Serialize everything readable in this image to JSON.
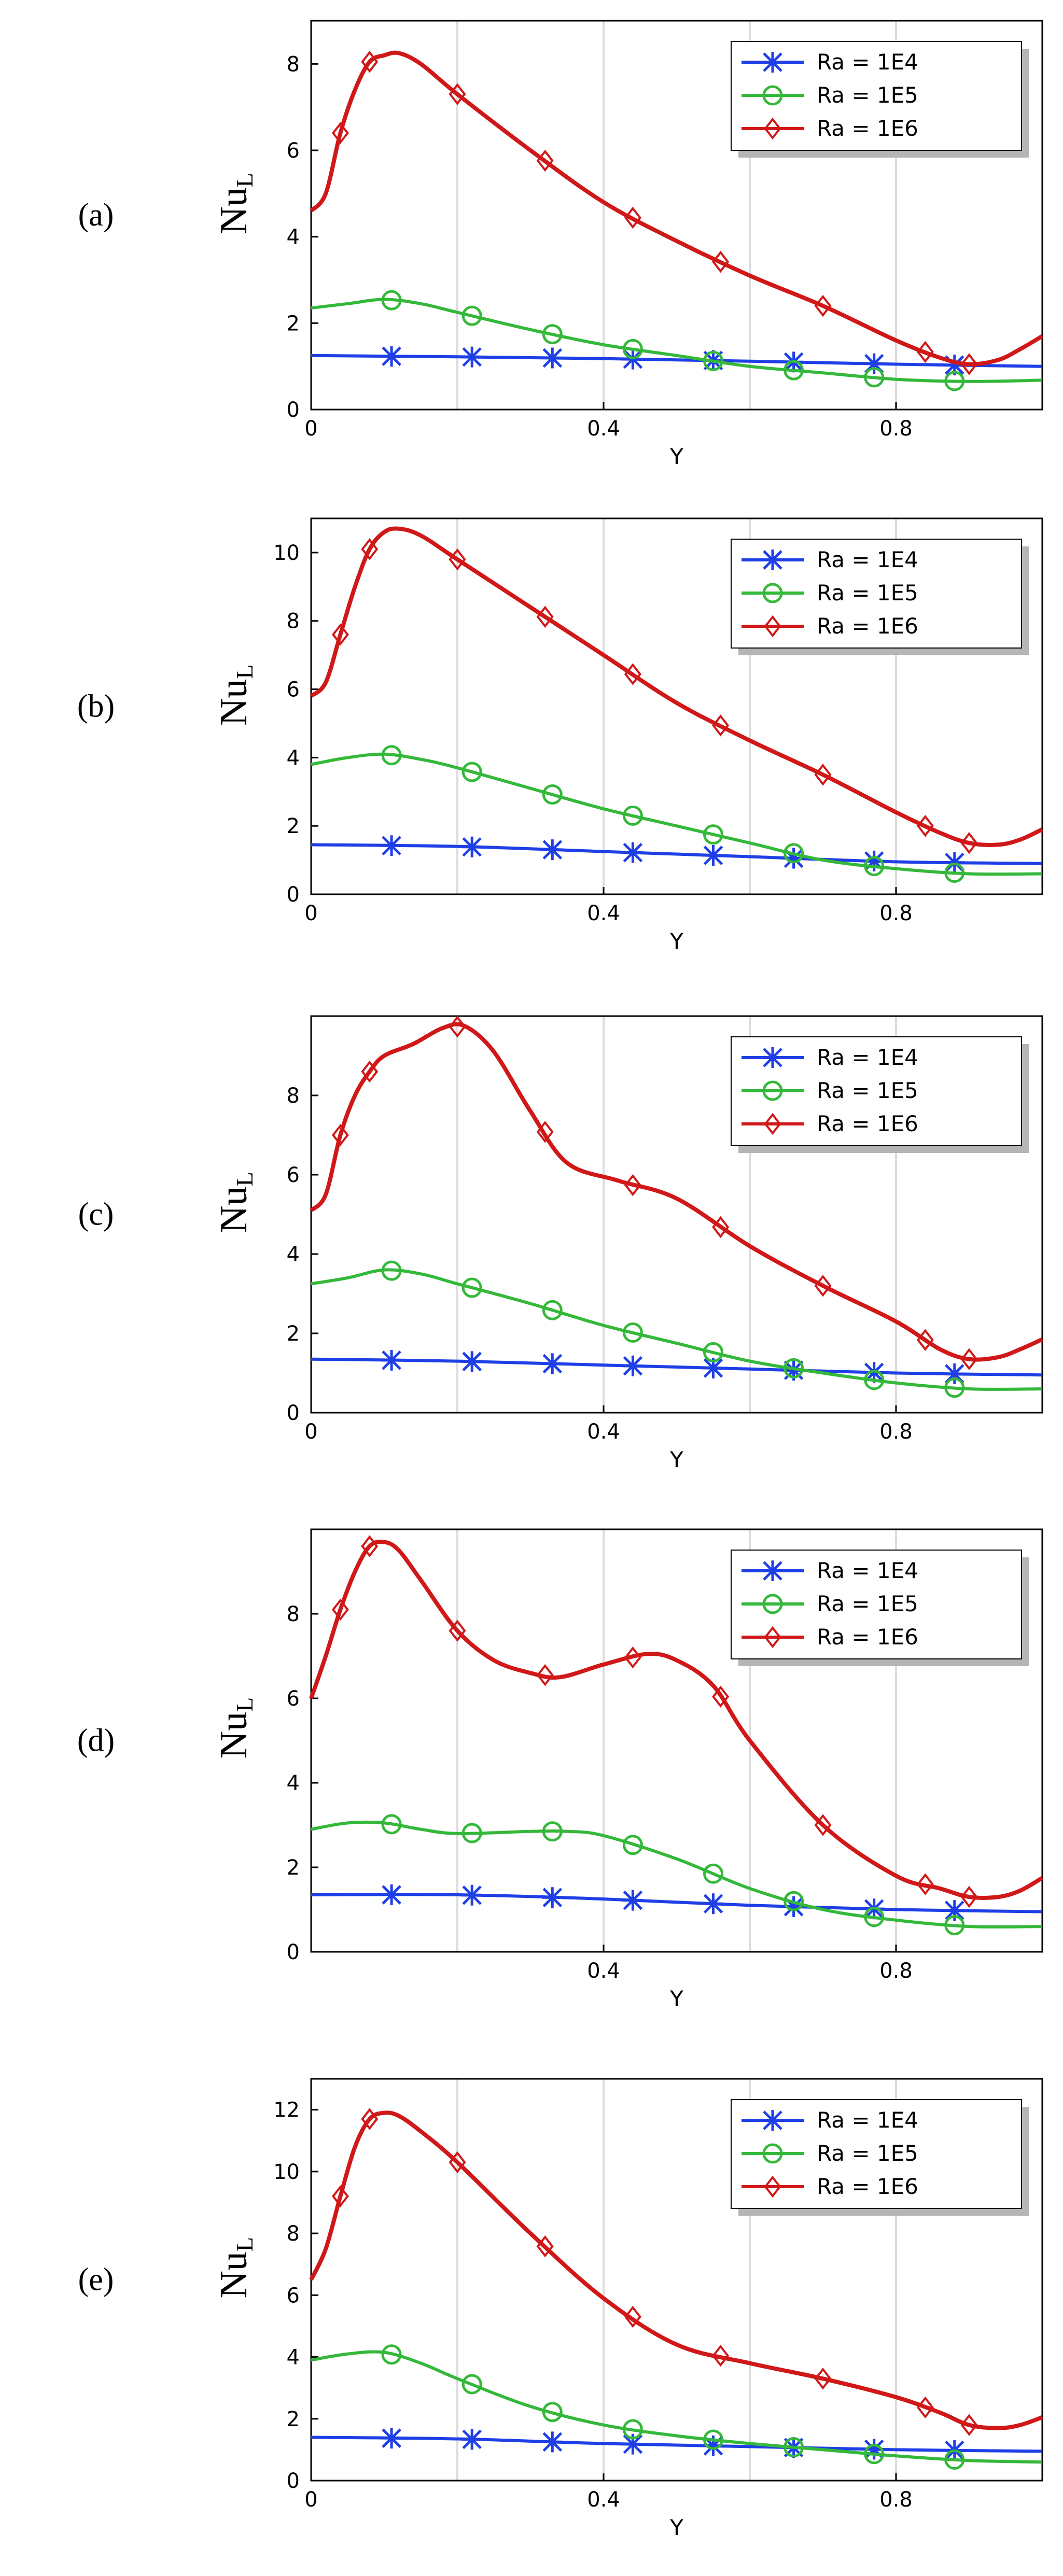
{
  "colors": {
    "Ra = 1E4": "#1f3fe6",
    "Ra = 1E5": "#34b83a",
    "Ra = 1E6": "#d01818"
  },
  "chart_data": [
    {
      "panel": "(a)",
      "type": "line",
      "xlabel": "Y",
      "ylabel": "Nu",
      "ylabel_sub": "L",
      "xlim": [
        0,
        1
      ],
      "ylim": [
        0,
        9
      ],
      "xticks": [
        0,
        0.4,
        0.8
      ],
      "yticks": [
        0,
        2,
        4,
        6,
        8
      ],
      "grid": true,
      "legend": "top-right",
      "series": [
        {
          "name": "Ra = 1E4",
          "marker": "x",
          "x": [
            0,
            0.2,
            0.4,
            0.6,
            0.8,
            1.0
          ],
          "y": [
            1.25,
            1.22,
            1.18,
            1.12,
            1.05,
            1.0
          ]
        },
        {
          "name": "Ra = 1E5",
          "marker": "circle",
          "x": [
            0,
            0.05,
            0.1,
            0.15,
            0.2,
            0.3,
            0.4,
            0.5,
            0.6,
            0.7,
            0.8,
            0.9,
            1.0
          ],
          "y": [
            2.35,
            2.45,
            2.55,
            2.45,
            2.25,
            1.85,
            1.5,
            1.25,
            1.0,
            0.85,
            0.7,
            0.65,
            0.68
          ]
        },
        {
          "name": "Ra = 1E6",
          "marker": "diamond",
          "x": [
            0,
            0.02,
            0.04,
            0.06,
            0.08,
            0.1,
            0.12,
            0.15,
            0.2,
            0.3,
            0.4,
            0.5,
            0.6,
            0.7,
            0.8,
            0.86,
            0.9,
            0.94,
            0.97,
            1.0
          ],
          "y": [
            4.6,
            5.0,
            6.4,
            7.4,
            8.05,
            8.2,
            8.25,
            8.0,
            7.3,
            6.0,
            4.8,
            3.9,
            3.1,
            2.4,
            1.6,
            1.2,
            1.05,
            1.15,
            1.4,
            1.7
          ]
        }
      ]
    },
    {
      "panel": "(b)",
      "type": "line",
      "xlabel": "Y",
      "ylabel": "Nu",
      "ylabel_sub": "L",
      "xlim": [
        0,
        1
      ],
      "ylim": [
        0,
        11
      ],
      "xticks": [
        0,
        0.4,
        0.8
      ],
      "yticks": [
        0,
        2,
        4,
        6,
        8,
        10
      ],
      "grid": true,
      "legend": "top-right",
      "series": [
        {
          "name": "Ra = 1E4",
          "marker": "x",
          "x": [
            0,
            0.2,
            0.4,
            0.6,
            0.8,
            1.0
          ],
          "y": [
            1.45,
            1.4,
            1.25,
            1.1,
            0.95,
            0.9
          ]
        },
        {
          "name": "Ra = 1E5",
          "marker": "circle",
          "x": [
            0,
            0.05,
            0.1,
            0.15,
            0.2,
            0.3,
            0.4,
            0.5,
            0.6,
            0.7,
            0.8,
            0.9,
            1.0
          ],
          "y": [
            3.8,
            4.0,
            4.1,
            3.95,
            3.7,
            3.1,
            2.5,
            2.0,
            1.5,
            1.0,
            0.75,
            0.6,
            0.6
          ]
        },
        {
          "name": "Ra = 1E6",
          "marker": "diamond",
          "x": [
            0,
            0.02,
            0.04,
            0.06,
            0.08,
            0.1,
            0.12,
            0.15,
            0.2,
            0.3,
            0.4,
            0.5,
            0.6,
            0.7,
            0.8,
            0.86,
            0.9,
            0.94,
            0.97,
            1.0
          ],
          "y": [
            5.8,
            6.2,
            7.6,
            9.0,
            10.1,
            10.6,
            10.7,
            10.5,
            9.8,
            8.4,
            7.0,
            5.6,
            4.5,
            3.5,
            2.4,
            1.8,
            1.5,
            1.45,
            1.6,
            1.9
          ]
        }
      ]
    },
    {
      "panel": "(c)",
      "type": "line",
      "xlabel": "Y",
      "ylabel": "Nu",
      "ylabel_sub": "L",
      "xlim": [
        0,
        1
      ],
      "ylim": [
        0,
        10
      ],
      "xticks": [
        0,
        0.4,
        0.8
      ],
      "yticks": [
        0,
        2,
        4,
        6,
        8
      ],
      "grid": true,
      "legend": "top-right",
      "series": [
        {
          "name": "Ra = 1E4",
          "marker": "x",
          "x": [
            0,
            0.2,
            0.4,
            0.6,
            0.8,
            1.0
          ],
          "y": [
            1.35,
            1.3,
            1.2,
            1.1,
            1.0,
            0.95
          ]
        },
        {
          "name": "Ra = 1E5",
          "marker": "circle",
          "x": [
            0,
            0.05,
            0.1,
            0.15,
            0.2,
            0.3,
            0.4,
            0.5,
            0.6,
            0.7,
            0.8,
            0.9,
            1.0
          ],
          "y": [
            3.25,
            3.4,
            3.6,
            3.5,
            3.25,
            2.75,
            2.2,
            1.75,
            1.3,
            1.0,
            0.75,
            0.6,
            0.6
          ]
        },
        {
          "name": "Ra = 1E6",
          "marker": "diamond",
          "x": [
            0,
            0.02,
            0.04,
            0.06,
            0.08,
            0.1,
            0.14,
            0.18,
            0.21,
            0.25,
            0.3,
            0.35,
            0.42,
            0.5,
            0.6,
            0.7,
            0.8,
            0.86,
            0.9,
            0.94,
            0.97,
            1.0
          ],
          "y": [
            5.1,
            5.5,
            7.0,
            8.0,
            8.6,
            9.0,
            9.3,
            9.7,
            9.75,
            9.1,
            7.6,
            6.3,
            5.85,
            5.4,
            4.2,
            3.2,
            2.3,
            1.6,
            1.35,
            1.4,
            1.6,
            1.85
          ]
        }
      ]
    },
    {
      "panel": "(d)",
      "type": "line",
      "xlabel": "Y",
      "ylabel": "Nu",
      "ylabel_sub": "L",
      "xlim": [
        0,
        1
      ],
      "ylim": [
        0,
        10
      ],
      "xticks": [
        0.4,
        0.8
      ],
      "yticks": [
        0,
        2,
        4,
        6,
        8
      ],
      "grid": true,
      "legend": "top-right",
      "series": [
        {
          "name": "Ra = 1E4",
          "marker": "x",
          "x": [
            0,
            0.2,
            0.4,
            0.6,
            0.8,
            1.0
          ],
          "y": [
            1.35,
            1.35,
            1.25,
            1.1,
            1.0,
            0.95
          ]
        },
        {
          "name": "Ra = 1E5",
          "marker": "circle",
          "x": [
            0,
            0.05,
            0.1,
            0.15,
            0.2,
            0.3,
            0.35,
            0.4,
            0.5,
            0.6,
            0.7,
            0.8,
            0.9,
            1.0
          ],
          "y": [
            2.9,
            3.05,
            3.05,
            2.9,
            2.8,
            2.85,
            2.85,
            2.75,
            2.2,
            1.5,
            1.0,
            0.75,
            0.6,
            0.6
          ]
        },
        {
          "name": "Ra = 1E6",
          "marker": "diamond",
          "x": [
            0,
            0.02,
            0.04,
            0.06,
            0.08,
            0.1,
            0.12,
            0.15,
            0.2,
            0.25,
            0.3,
            0.34,
            0.4,
            0.46,
            0.5,
            0.55,
            0.6,
            0.7,
            0.8,
            0.86,
            0.9,
            0.94,
            0.97,
            1.0
          ],
          "y": [
            6.0,
            7.0,
            8.1,
            9.0,
            9.6,
            9.7,
            9.5,
            8.8,
            7.6,
            6.9,
            6.6,
            6.5,
            6.8,
            7.05,
            6.9,
            6.3,
            5.0,
            3.0,
            1.8,
            1.5,
            1.3,
            1.3,
            1.45,
            1.75
          ]
        }
      ]
    },
    {
      "panel": "(e)",
      "type": "line",
      "xlabel": "Y",
      "ylabel": "Nu",
      "ylabel_sub": "L",
      "xlim": [
        0,
        1
      ],
      "ylim": [
        0,
        13
      ],
      "xticks": [
        0,
        0.4,
        0.8
      ],
      "yticks": [
        0,
        2,
        4,
        6,
        8,
        10,
        12
      ],
      "grid": true,
      "legend": "top-right",
      "series": [
        {
          "name": "Ra = 1E4",
          "marker": "x",
          "x": [
            0,
            0.2,
            0.4,
            0.6,
            0.8,
            1.0
          ],
          "y": [
            1.4,
            1.35,
            1.2,
            1.1,
            1.0,
            0.95
          ]
        },
        {
          "name": "Ra = 1E5",
          "marker": "circle",
          "x": [
            0,
            0.05,
            0.1,
            0.15,
            0.2,
            0.3,
            0.4,
            0.5,
            0.6,
            0.7,
            0.8,
            0.9,
            1.0
          ],
          "y": [
            3.9,
            4.1,
            4.15,
            3.8,
            3.3,
            2.4,
            1.8,
            1.45,
            1.2,
            1.0,
            0.8,
            0.65,
            0.6
          ]
        },
        {
          "name": "Ra = 1E6",
          "marker": "diamond",
          "x": [
            0,
            0.02,
            0.04,
            0.06,
            0.08,
            0.1,
            0.12,
            0.15,
            0.2,
            0.3,
            0.4,
            0.5,
            0.6,
            0.7,
            0.8,
            0.86,
            0.9,
            0.94,
            0.97,
            1.0
          ],
          "y": [
            6.5,
            7.5,
            9.2,
            10.8,
            11.7,
            11.9,
            11.8,
            11.3,
            10.3,
            8.0,
            5.9,
            4.4,
            3.8,
            3.3,
            2.7,
            2.2,
            1.8,
            1.7,
            1.8,
            2.05
          ]
        }
      ]
    }
  ]
}
